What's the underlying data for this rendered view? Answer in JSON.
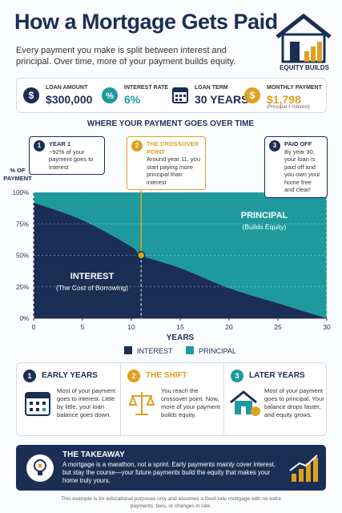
{
  "header": {
    "title": "How a Mortgage Gets Paid",
    "subtitle": "Every payment you make is split between interest and principal. Over time, more of your payment builds equity.",
    "badge": "EQUITY BUILDS"
  },
  "stats": [
    {
      "label": "LOAN AMOUNT",
      "value": "$300,000"
    },
    {
      "label": "INTEREST RATE",
      "value": "6%"
    },
    {
      "label": "LOAN TERM",
      "value": "30 YEARS"
    },
    {
      "label": "MONTHLY PAYMENT",
      "value": "$1,798",
      "note": "(Principal + Interest)"
    }
  ],
  "chart_data": {
    "type": "area",
    "stacked": true,
    "title": "WHERE YOUR PAYMENT GOES OVER TIME",
    "x": [
      0,
      5,
      10,
      11,
      15,
      20,
      25,
      30
    ],
    "series": [
      {
        "name": "INTEREST",
        "color": "#1b2f55",
        "values": [
          92,
          78,
          57,
          50,
          40,
          24,
          12,
          0
        ]
      },
      {
        "name": "PRINCIPAL",
        "color": "#1f9a9c",
        "values": [
          8,
          22,
          43,
          50,
          60,
          76,
          88,
          100
        ]
      }
    ],
    "xlim": [
      0,
      30
    ],
    "xticks": [
      0,
      5,
      10,
      15,
      20,
      25,
      30
    ],
    "ylim": [
      0,
      100
    ],
    "yticks": [
      {
        "value": 0,
        "label": "0%"
      },
      {
        "value": 25,
        "label": "25%"
      },
      {
        "value": 50,
        "label": "50%"
      },
      {
        "value": 75,
        "label": "75%"
      },
      {
        "value": 100,
        "label": "100%"
      }
    ],
    "xlabel": "YEARS",
    "ylabel": "% OF PAYMENT",
    "area_labels": [
      {
        "title": "INTEREST",
        "subtitle": "(The Cost of Borrowing)"
      },
      {
        "title": "PRINCIPAL",
        "subtitle": "(Builds Equity)"
      }
    ],
    "annotations": [
      {
        "number": "1",
        "title": "YEAR 1",
        "text": "~92% of your payment goes to interest",
        "x": 0
      },
      {
        "number": "2",
        "title": "THE CROSSOVER POINT",
        "text": "Around year 11, you start paying more principal than interest",
        "x": 11,
        "y": 50
      },
      {
        "number": "3",
        "title": "PAID OFF",
        "text": "By year 30, your loan is paid off and you own your home free and clear!",
        "x": 30
      }
    ]
  },
  "cards": [
    {
      "number": "1",
      "title": "EARLY YEARS",
      "text": "Most of your payment goes to interest. Little by little, your loan balance goes down."
    },
    {
      "number": "2",
      "title": "THE SHIFT",
      "text": "You reach the crossover point. Now, more of your payment builds equity."
    },
    {
      "number": "3",
      "title": "LATER YEARS",
      "text": "Most of your payment goes to principal. Your balance drops faster, and equity grows."
    }
  ],
  "takeaway": {
    "title": "THE TAKEAWAY",
    "text": "A mortgage is a marathon, not a sprint. Early payments mainly cover interest, but stay the course—your future payments build the equity that makes your home truly yours."
  },
  "footer": "This example is for educational purposes only and assumes a fixed-rate mortgage with no extra payments, fees, or changes in rate."
}
